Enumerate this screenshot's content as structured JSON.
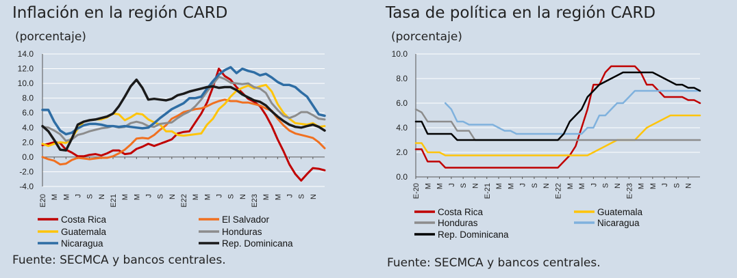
{
  "charts_text": {
    "left_title": "Inflación en la región CARD",
    "left_subtitle": "(porcentaje)",
    "left_source": "Fuente: SECMCA y bancos centrales.",
    "right_title": "Tasa de política en la región CARD",
    "right_subtitle": "(porcentaje)",
    "right_source": "Fuente: SECMCA y bancos centrales."
  },
  "chart_data": [
    {
      "type": "line",
      "title": "Inflación en la región CARD",
      "subtitle": "(porcentaje)",
      "ylim": [
        -4,
        14
      ],
      "yticks": [
        "14.0",
        "12.0",
        "10.0",
        "8.0",
        "6.0",
        "4.0",
        "2.0",
        "0.0",
        "-2.0",
        "-4.0"
      ],
      "xticks": [
        "E20",
        "M",
        "M",
        "J",
        "S",
        "N",
        "E21",
        "M",
        "M",
        "J",
        "S",
        "N",
        "E22",
        "M",
        "M",
        "J",
        "S",
        "N",
        "E23",
        "M",
        "M",
        "J",
        "S",
        "N"
      ],
      "x_start": "2020-01",
      "legend": [
        "Costa Rica",
        "El Salvador",
        "Guatemala",
        "Honduras",
        "Nicaragua",
        "Rep. Dominicana"
      ],
      "grid": "horizontal",
      "series": [
        {
          "name": "Costa Rica",
          "color": "#c00000",
          "width": 3,
          "values": [
            1.6,
            1.8,
            2.0,
            1.9,
            1.0,
            0.6,
            0.1,
            0.1,
            0.3,
            0.4,
            0.2,
            0.5,
            0.9,
            0.9,
            0.4,
            0.5,
            1.1,
            1.4,
            1.8,
            1.5,
            1.8,
            2.1,
            2.4,
            3.2,
            3.4,
            3.5,
            4.7,
            5.9,
            7.4,
            9.5,
            12.0,
            11.0,
            10.5,
            9.5,
            8.7,
            7.9,
            7.5,
            6.9,
            5.7,
            4.2,
            2.4,
            0.8,
            -1.0,
            -2.3,
            -3.2,
            -2.3,
            -1.5,
            -1.6,
            -1.8
          ]
        },
        {
          "name": "El Salvador",
          "color": "#f07020",
          "width": 3,
          "values": [
            0.0,
            -0.3,
            -0.5,
            -1.0,
            -0.9,
            -0.4,
            -0.1,
            -0.2,
            -0.3,
            -0.2,
            -0.1,
            -0.1,
            0.1,
            0.5,
            1.0,
            1.7,
            2.5,
            2.6,
            2.5,
            3.0,
            3.7,
            4.3,
            5.2,
            5.6,
            6.1,
            6.3,
            6.5,
            6.6,
            6.9,
            7.3,
            7.6,
            7.8,
            7.6,
            7.6,
            7.4,
            7.4,
            7.2,
            7.0,
            6.6,
            6.3,
            5.2,
            4.3,
            3.6,
            3.2,
            3.0,
            2.8,
            2.6,
            2.0,
            1.2
          ]
        },
        {
          "name": "Guatemala",
          "color": "#fec40a",
          "width": 3,
          "values": [
            1.8,
            1.5,
            1.8,
            2.0,
            1.9,
            2.6,
            3.8,
            4.8,
            5.0,
            5.1,
            5.1,
            5.4,
            5.9,
            5.8,
            5.0,
            5.4,
            5.9,
            5.8,
            5.1,
            4.7,
            4.4,
            3.5,
            3.5,
            3.0,
            2.9,
            3.0,
            3.1,
            3.2,
            4.4,
            5.2,
            6.5,
            7.2,
            8.2,
            9.0,
            9.4,
            9.7,
            9.3,
            9.6,
            9.8,
            8.9,
            7.2,
            6.0,
            5.2,
            4.6,
            4.5,
            4.4,
            4.6,
            4.1,
            4.2
          ]
        },
        {
          "name": "Honduras",
          "color": "#8c8c8c",
          "width": 3,
          "values": [
            4.1,
            4.0,
            3.6,
            3.1,
            2.2,
            2.4,
            3.0,
            3.2,
            3.5,
            3.7,
            3.9,
            4.0,
            4.2,
            4.0,
            4.1,
            4.6,
            4.8,
            4.6,
            4.2,
            4.1,
            4.5,
            4.6,
            4.7,
            5.3,
            5.8,
            6.2,
            6.9,
            7.8,
            8.9,
            9.9,
            10.9,
            10.6,
            10.1,
            10.0,
            9.9,
            10.0,
            9.5,
            9.3,
            8.7,
            7.3,
            6.4,
            5.6,
            5.3,
            5.6,
            6.1,
            6.1,
            5.7,
            5.2,
            5.1
          ]
        },
        {
          "name": "Nicaragua",
          "color": "#2e6da4",
          "width": 3.5,
          "values": [
            6.4,
            6.4,
            4.8,
            3.6,
            3.1,
            3.3,
            3.9,
            4.3,
            4.5,
            4.5,
            4.4,
            4.2,
            4.2,
            4.1,
            4.2,
            4.1,
            4.0,
            3.9,
            4.0,
            4.6,
            5.3,
            5.9,
            6.5,
            6.9,
            7.3,
            8.0,
            8.0,
            8.2,
            9.3,
            10.3,
            11.2,
            11.8,
            12.2,
            11.4,
            12.0,
            11.7,
            11.5,
            11.1,
            11.3,
            10.8,
            10.2,
            9.8,
            9.8,
            9.5,
            8.8,
            8.2,
            7.0,
            5.8,
            5.6
          ]
        },
        {
          "name": "Rep. Dominicana",
          "color": "#1a1a1a",
          "width": 3.5,
          "values": [
            4.2,
            3.5,
            2.3,
            1.0,
            0.9,
            2.5,
            4.4,
            4.8,
            5.0,
            5.1,
            5.3,
            5.5,
            5.9,
            6.9,
            8.2,
            9.6,
            10.5,
            9.4,
            7.8,
            7.9,
            7.8,
            7.7,
            7.9,
            8.4,
            8.6,
            8.9,
            9.1,
            9.3,
            9.5,
            9.6,
            9.4,
            9.5,
            9.5,
            9.1,
            8.5,
            8.1,
            7.7,
            7.5,
            7.0,
            6.2,
            5.5,
            4.9,
            4.4,
            4.1,
            4.0,
            4.2,
            4.4,
            4.1,
            3.6
          ]
        }
      ]
    },
    {
      "type": "line",
      "title": "Tasa de política en la región CARD",
      "subtitle": "(porcentaje)",
      "ylim": [
        0,
        10
      ],
      "yticks": [
        "10.0",
        "8.0",
        "6.0",
        "4.0",
        "2.0",
        "0.0"
      ],
      "xticks": [
        "E-20",
        "M",
        "M",
        "J",
        "S",
        "N",
        "E-21",
        "M",
        "M",
        "J",
        "S",
        "N",
        "E-22",
        "M",
        "M",
        "J",
        "S",
        "N",
        "E-23",
        "M",
        "M",
        "J",
        "S",
        "N"
      ],
      "x_start": "2020-01",
      "legend": [
        "Costa Rica",
        "Guatemala",
        "Honduras",
        "Nicaragua",
        "Rep. Dominicana"
      ],
      "grid": "horizontal",
      "series": [
        {
          "name": "Costa Rica",
          "color": "#c00000",
          "width": 2.5,
          "values": [
            2.25,
            2.25,
            1.25,
            1.25,
            1.25,
            0.75,
            0.75,
            0.75,
            0.75,
            0.75,
            0.75,
            0.75,
            0.75,
            0.75,
            0.75,
            0.75,
            0.75,
            0.75,
            0.75,
            0.75,
            0.75,
            0.75,
            0.75,
            0.75,
            0.75,
            1.25,
            1.75,
            2.5,
            4.0,
            5.5,
            7.5,
            7.5,
            8.5,
            9.0,
            9.0,
            9.0,
            9.0,
            9.0,
            8.5,
            7.5,
            7.5,
            7.0,
            6.5,
            6.5,
            6.5,
            6.5,
            6.25,
            6.25,
            6.0
          ]
        },
        {
          "name": "Guatemala",
          "color": "#fec40a",
          "width": 2.5,
          "values": [
            2.75,
            2.75,
            2.0,
            2.0,
            2.0,
            1.75,
            1.75,
            1.75,
            1.75,
            1.75,
            1.75,
            1.75,
            1.75,
            1.75,
            1.75,
            1.75,
            1.75,
            1.75,
            1.75,
            1.75,
            1.75,
            1.75,
            1.75,
            1.75,
            1.75,
            1.75,
            1.75,
            1.75,
            1.75,
            1.75,
            2.0,
            2.25,
            2.5,
            2.75,
            3.0,
            3.0,
            3.0,
            3.0,
            3.5,
            4.0,
            4.25,
            4.5,
            4.75,
            5.0,
            5.0,
            5.0,
            5.0,
            5.0,
            5.0
          ]
        },
        {
          "name": "Honduras",
          "color": "#8c8c8c",
          "width": 2.5,
          "values": [
            5.5,
            5.25,
            4.5,
            4.5,
            4.5,
            4.5,
            4.5,
            3.75,
            3.75,
            3.75,
            3.0,
            3.0,
            3.0,
            3.0,
            3.0,
            3.0,
            3.0,
            3.0,
            3.0,
            3.0,
            3.0,
            3.0,
            3.0,
            3.0,
            3.0,
            3.0,
            3.0,
            3.0,
            3.0,
            3.0,
            3.0,
            3.0,
            3.0,
            3.0,
            3.0,
            3.0,
            3.0,
            3.0,
            3.0,
            3.0,
            3.0,
            3.0,
            3.0,
            3.0,
            3.0,
            3.0,
            3.0,
            3.0,
            3.0
          ]
        },
        {
          "name": "Nicaragua",
          "color": "#7fb1dd",
          "width": 2.5,
          "values": [
            null,
            null,
            null,
            null,
            null,
            6.0,
            5.5,
            4.5,
            4.5,
            4.25,
            4.25,
            4.25,
            4.25,
            4.25,
            4.0,
            3.75,
            3.75,
            3.5,
            3.5,
            3.5,
            3.5,
            3.5,
            3.5,
            3.5,
            3.5,
            3.5,
            3.5,
            3.5,
            3.5,
            4.0,
            4.0,
            5.0,
            5.0,
            5.5,
            6.0,
            6.0,
            6.5,
            7.0,
            7.0,
            7.0,
            7.0,
            7.0,
            7.0,
            7.0,
            7.0,
            7.0,
            7.0,
            7.0,
            7.0
          ]
        },
        {
          "name": "Rep. Dominicana",
          "color": "#000000",
          "width": 2.5,
          "values": [
            4.5,
            4.5,
            3.5,
            3.5,
            3.5,
            3.5,
            3.5,
            3.0,
            3.0,
            3.0,
            3.0,
            3.0,
            3.0,
            3.0,
            3.0,
            3.0,
            3.0,
            3.0,
            3.0,
            3.0,
            3.0,
            3.0,
            3.0,
            3.0,
            3.0,
            3.5,
            4.5,
            5.0,
            5.5,
            6.5,
            7.0,
            7.5,
            7.75,
            8.0,
            8.25,
            8.5,
            8.5,
            8.5,
            8.5,
            8.5,
            8.5,
            8.25,
            8.0,
            7.75,
            7.5,
            7.5,
            7.25,
            7.25,
            7.0
          ]
        }
      ]
    }
  ]
}
